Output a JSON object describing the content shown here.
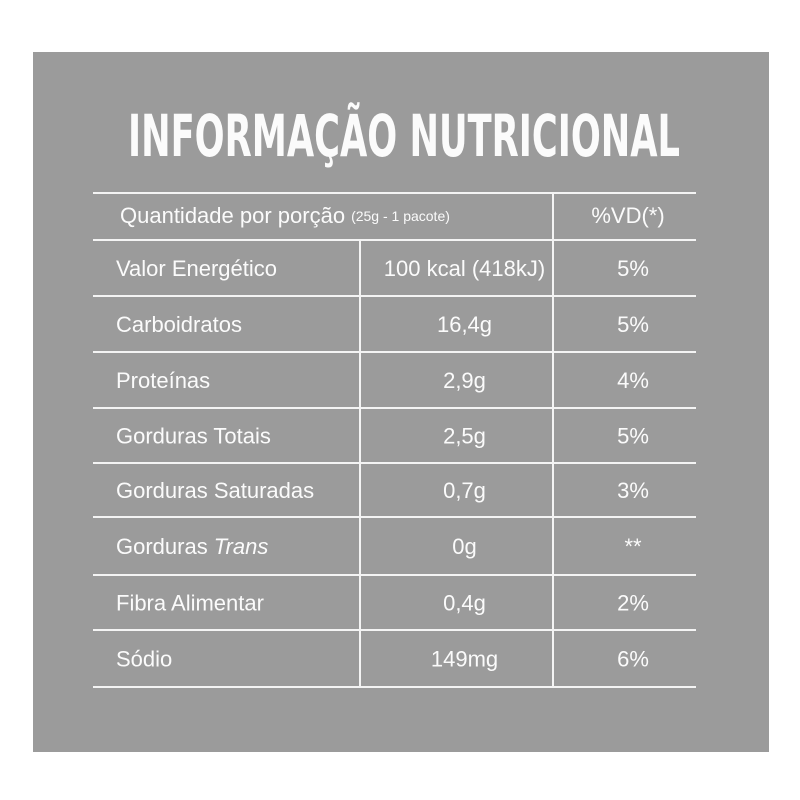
{
  "title": "INFORMAÇÃO NUTRICIONAL",
  "header": {
    "label": "Quantidade por porção",
    "portion": "(25g - 1 pacote)",
    "dv": "%VD(*)"
  },
  "rows": [
    {
      "nutrient": "Valor Energético",
      "amount": "100 kcal (418kJ)",
      "dv": "5%"
    },
    {
      "nutrient": "Carboidratos",
      "amount": "16,4g",
      "dv": "5%"
    },
    {
      "nutrient": "Proteínas",
      "amount": "2,9g",
      "dv": "4%"
    },
    {
      "nutrient": "Gorduras Totais",
      "amount": "2,5g",
      "dv": "5%"
    },
    {
      "nutrient": "Gorduras Saturadas",
      "amount": "0,7g",
      "dv": "3%"
    },
    {
      "nutrient": "Gorduras",
      "nutrient_italic": "Trans",
      "amount": "0g",
      "dv": "**"
    },
    {
      "nutrient": "Fibra Alimentar",
      "amount": "0,4g",
      "dv": "2%"
    },
    {
      "nutrient": "Sódio",
      "amount": "149mg",
      "dv": "6%"
    }
  ]
}
